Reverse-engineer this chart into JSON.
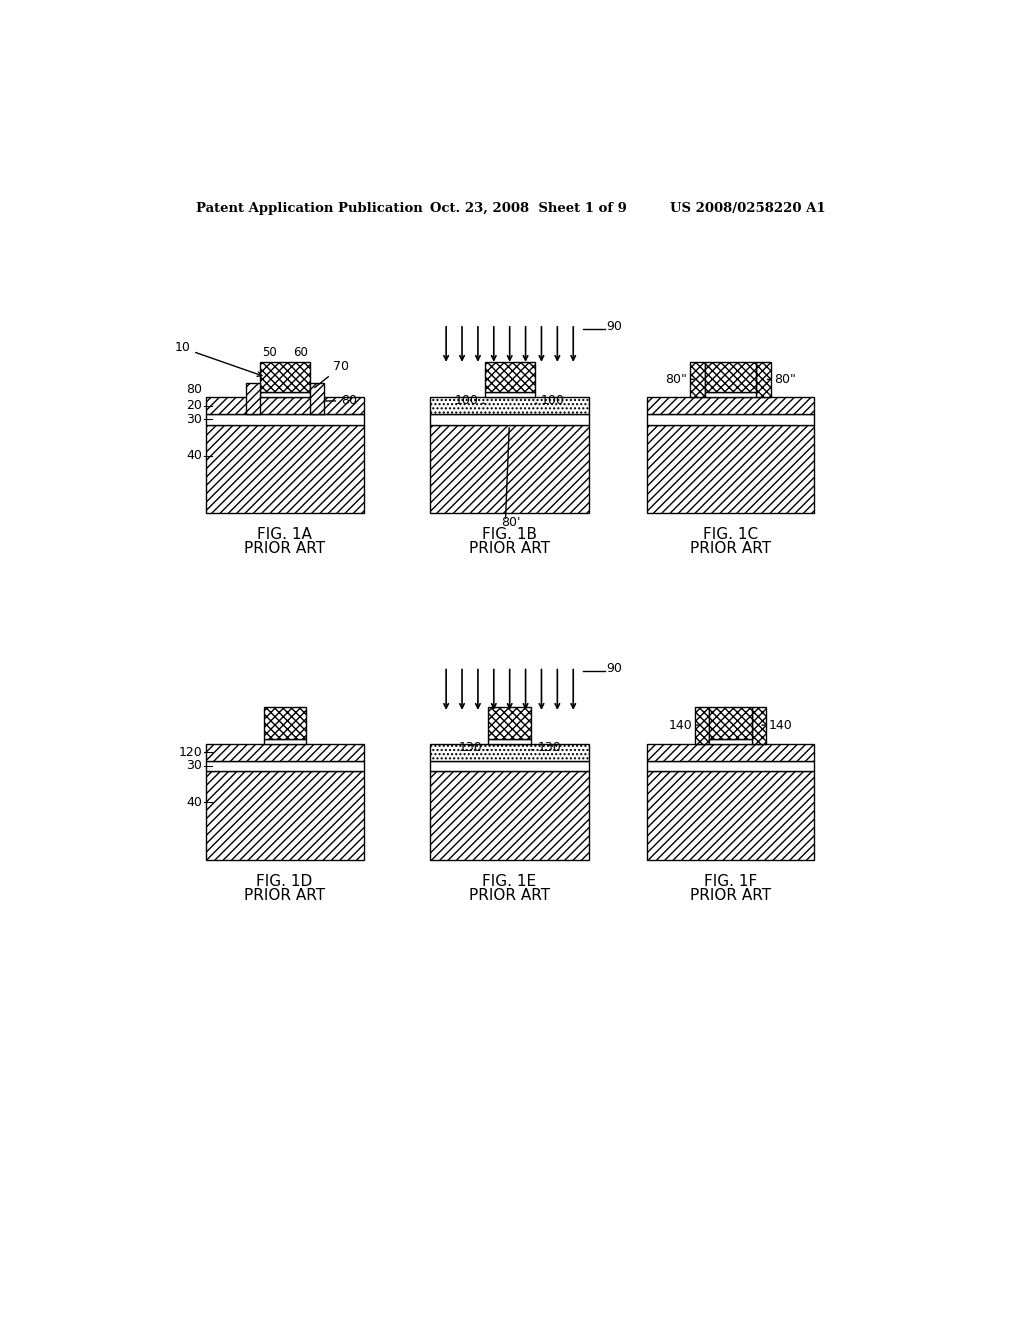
{
  "header_left": "Patent Application Publication",
  "header_mid": "Oct. 23, 2008  Sheet 1 of 9",
  "header_right": "US 2008/0258220 A1",
  "bg_color": "#ffffff"
}
